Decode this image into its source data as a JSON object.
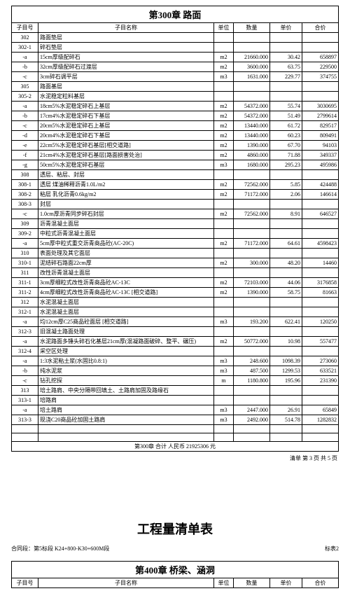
{
  "chapter300": {
    "title": "第300章  路面",
    "columns": [
      "子目号",
      "子目名称",
      "单位",
      "数量",
      "单价",
      "合价"
    ],
    "rows": [
      {
        "id": "302",
        "name": "路面垫层",
        "unit": "",
        "qty": "",
        "price": "",
        "sum": ""
      },
      {
        "id": "302-1",
        "name": "碎石垫层",
        "unit": "",
        "qty": "",
        "price": "",
        "sum": ""
      },
      {
        "id": "-a",
        "name": "15cm厚级配碎石",
        "unit": "m2",
        "qty": "21660.000",
        "price": "30.42",
        "sum": "658897"
      },
      {
        "id": "-b",
        "name": "32cm厚级配碎石过渡层",
        "unit": "m2",
        "qty": "3600.000",
        "price": "63.75",
        "sum": "229500"
      },
      {
        "id": "-c",
        "name": "3cm碎石调平层",
        "unit": "m3",
        "qty": "1631.000",
        "price": "229.77",
        "sum": "374755"
      },
      {
        "id": "305",
        "name": "路面基层",
        "unit": "",
        "qty": "",
        "price": "",
        "sum": ""
      },
      {
        "id": "305-2",
        "name": "水泥稳定粒料基层",
        "unit": "",
        "qty": "",
        "price": "",
        "sum": ""
      },
      {
        "id": "-a",
        "name": "18cm5%水泥稳定碎石上基层",
        "unit": "m2",
        "qty": "54372.000",
        "price": "55.74",
        "sum": "3030695"
      },
      {
        "id": "-b",
        "name": "17cm4%水泥稳定碎石下基层",
        "unit": "m2",
        "qty": "54372.000",
        "price": "51.49",
        "sum": "2799614"
      },
      {
        "id": "-c",
        "name": "20cm5%水泥稳定碎石上基层",
        "unit": "m2",
        "qty": "13440.000",
        "price": "61.72",
        "sum": "829517"
      },
      {
        "id": "-d",
        "name": "20cm4%水泥稳定碎石下基层",
        "unit": "m2",
        "qty": "13440.000",
        "price": "60.23",
        "sum": "809491"
      },
      {
        "id": "-e",
        "name": "22cm5%水泥稳定碎石基层[相交道路]",
        "unit": "m2",
        "qty": "1390.000",
        "price": "67.70",
        "sum": "94103"
      },
      {
        "id": "-f",
        "name": "21cm4%水泥稳定碎石基层[路面损害处治]",
        "unit": "m2",
        "qty": "4860.000",
        "price": "71.88",
        "sum": "349337"
      },
      {
        "id": "-g",
        "name": "50cm5%水泥稳定碎石基层",
        "unit": "m3",
        "qty": "1680.000",
        "price": "295.23",
        "sum": "495986"
      },
      {
        "id": "308",
        "name": "透层、粘层、封层",
        "unit": "",
        "qty": "",
        "price": "",
        "sum": ""
      },
      {
        "id": "308-1",
        "name": "透层 煤油稀释沥青1.0L/m2",
        "unit": "m2",
        "qty": "72562.000",
        "price": "5.85",
        "sum": "424488"
      },
      {
        "id": "308-2",
        "name": "粘层 乳化沥青0.6kg/m2",
        "unit": "m2",
        "qty": "71172.000",
        "price": "2.06",
        "sum": "146614"
      },
      {
        "id": "308-3",
        "name": "封层",
        "unit": "",
        "qty": "",
        "price": "",
        "sum": ""
      },
      {
        "id": "-c",
        "name": "1.0cm厚沥青同步碎石封层",
        "unit": "m2",
        "qty": "72562.000",
        "price": "8.91",
        "sum": "646527"
      },
      {
        "id": "309",
        "name": "沥青混凝土面层",
        "unit": "",
        "qty": "",
        "price": "",
        "sum": ""
      },
      {
        "id": "309-2",
        "name": "中粒式沥青混凝土面层",
        "unit": "",
        "qty": "",
        "price": "",
        "sum": ""
      },
      {
        "id": "-a",
        "name": "5cm厚中粒式重交沥青商品砼(AC-20C)",
        "unit": "m2",
        "qty": "71172.000",
        "price": "64.61",
        "sum": "4598423"
      },
      {
        "id": "310",
        "name": "表面处理及其它面层",
        "unit": "",
        "qty": "",
        "price": "",
        "sum": ""
      },
      {
        "id": "310-1",
        "name": "泥结碎石路面22cm厚",
        "unit": "m2",
        "qty": "300.000",
        "price": "48.20",
        "sum": "14460"
      },
      {
        "id": "311",
        "name": "改性沥青混凝土面层",
        "unit": "",
        "qty": "",
        "price": "",
        "sum": ""
      },
      {
        "id": "311-1",
        "name": "3cm厚细粒式改性沥青商品砼AC-13C",
        "unit": "m2",
        "qty": "72103.000",
        "price": "44.06",
        "sum": "3176858"
      },
      {
        "id": "311-2",
        "name": "4cm厚细粒式改性沥青商品砼AC-13C [相交道路]",
        "unit": "m2",
        "qty": "1390.000",
        "price": "58.75",
        "sum": "81663"
      },
      {
        "id": "312",
        "name": "水泥混凝土面层",
        "unit": "",
        "qty": "",
        "price": "",
        "sum": ""
      },
      {
        "id": "312-1",
        "name": "水泥混凝土面层",
        "unit": "",
        "qty": "",
        "price": "",
        "sum": ""
      },
      {
        "id": "-a",
        "name": "均12cm厚C25商品砼面层 [相交道路]",
        "unit": "m3",
        "qty": "193.200",
        "price": "622.41",
        "sum": "120250"
      },
      {
        "id": "312-3",
        "name": "旧混凝土路面处理",
        "unit": "",
        "qty": "",
        "price": "",
        "sum": ""
      },
      {
        "id": "-a",
        "name": "水泥路面多锤头碎石化基层21cm厚(混凝路面破碎、整平、碾压)",
        "unit": "m2",
        "qty": "50772.000",
        "price": "10.98",
        "sum": "557477"
      },
      {
        "id": "312-4",
        "name": "采空区处理",
        "unit": "",
        "qty": "",
        "price": "",
        "sum": ""
      },
      {
        "id": "-a",
        "name": "1:3水泥粘土浆(水固比0.8:1)",
        "unit": "m3",
        "qty": "248.600",
        "price": "1098.39",
        "sum": "273060"
      },
      {
        "id": "-b",
        "name": "纯水泥浆",
        "unit": "m3",
        "qty": "487.500",
        "price": "1299.53",
        "sum": "633521"
      },
      {
        "id": "-c",
        "name": "钻孔挖探",
        "unit": "m",
        "qty": "1180.800",
        "price": "195.96",
        "sum": "231390"
      },
      {
        "id": "313",
        "name": "培土路肩、中央分隔带回填土、土路肩加固及路缘石",
        "unit": "",
        "qty": "",
        "price": "",
        "sum": ""
      },
      {
        "id": "313-1",
        "name": "培路肩",
        "unit": "",
        "qty": "",
        "price": "",
        "sum": ""
      },
      {
        "id": "-a",
        "name": "培土路肩",
        "unit": "m3",
        "qty": "2447.000",
        "price": "26.91",
        "sum": "65849"
      },
      {
        "id": "313-3",
        "name": "现浇C20商品砼加固土路肩",
        "unit": "m3",
        "qty": "2492.000",
        "price": "514.78",
        "sum": "1282832"
      }
    ],
    "blank_rows": 2,
    "subtotal_label": "第300章   合计    人民币   21925306   元",
    "footer": "清单      第 3 页 共 5 页"
  },
  "page2": {
    "doc_title": "工程量清单表",
    "contract_left": "合同段：第5标段 K24+800-K30+600M段",
    "contract_right": "标表2",
    "chapter_title": "第400章  桥梁、涵洞",
    "columns": [
      "子目号",
      "子目名称",
      "单位",
      "数量",
      "单价",
      "合价"
    ]
  }
}
